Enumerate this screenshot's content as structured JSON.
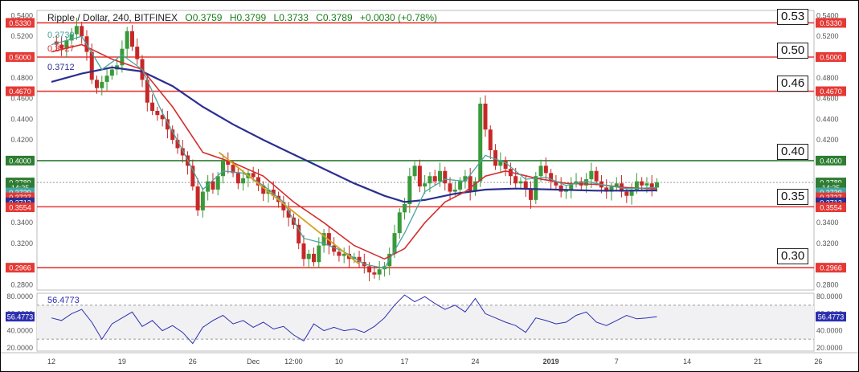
{
  "header": {
    "symbol": "Ripple / Dollar, 240, BITFINEX",
    "open": "O0.3759",
    "high": "H0.3799",
    "low": "L0.3733",
    "close": "C0.3789",
    "change": "+0.0030 (+0.78%)"
  },
  "level_boxes": [
    "0.53",
    "0.50",
    "0.46",
    "0.40",
    "0.35",
    "0.30"
  ],
  "ma_labels": {
    "ma1": "0.3739",
    "ma2": "0.3727",
    "ma3": "0.3712"
  },
  "rsi_label": "56.4773",
  "colors": {
    "up": "#3a9a3a",
    "down": "#c62828",
    "ma_fast": "#4aa3a0",
    "ma_mid": "#d32f2f",
    "ma_slow": "#2b2f8f",
    "trend": "#d4a020",
    "level_red": "#e53935",
    "level_green": "#2e7d32",
    "rsi": "#2b2fb0"
  },
  "chart_data": {
    "type": "candlestick",
    "ylim": [
      0.275,
      0.545
    ],
    "y_ticks": [
      "0.5400",
      "0.5200",
      "0.4800",
      "0.4600",
      "0.4400",
      "0.4200",
      "0.3800",
      "0.3600",
      "0.3400",
      "0.3200",
      "0.2800"
    ],
    "right_tags": [
      {
        "label": "0.5330",
        "value": 0.533,
        "color": "#e53935"
      },
      {
        "label": "0.5000",
        "value": 0.5,
        "color": "#e53935"
      },
      {
        "label": "0.4670",
        "value": 0.467,
        "color": "#e53935"
      },
      {
        "label": "0.4000",
        "value": 0.4,
        "color": "#2e7d32"
      },
      {
        "label": "0.3789",
        "value": 0.3789,
        "color": "#2e7d32"
      },
      {
        "label": "14:25",
        "value": 0.3741,
        "color": "#2e7d32"
      },
      {
        "label": "0.3739",
        "value": 0.3693,
        "color": "#4aa3a0"
      },
      {
        "label": "0.3727",
        "value": 0.3645,
        "color": "#e53935"
      },
      {
        "label": "0.3712",
        "value": 0.3597,
        "color": "#2b2f8f"
      },
      {
        "label": "0.3554",
        "value": 0.3549,
        "color": "#e53935"
      },
      {
        "label": "0.2966",
        "value": 0.2966,
        "color": "#e53935"
      }
    ],
    "left_tags": [
      {
        "label": "0.5330",
        "value": 0.533,
        "color": "#e53935"
      },
      {
        "label": "0.5000",
        "value": 0.5,
        "color": "#e53935"
      },
      {
        "label": "0.4670",
        "value": 0.467,
        "color": "#e53935"
      },
      {
        "label": "0.4000",
        "value": 0.4,
        "color": "#2e7d32"
      },
      {
        "label": "0.3789",
        "value": 0.3789,
        "color": "#2e7d32"
      },
      {
        "label": "14:25",
        "value": 0.3741,
        "color": "#2e7d32"
      },
      {
        "label": "0.3739",
        "value": 0.3693,
        "color": "#4aa3a0"
      },
      {
        "label": "0.3727",
        "value": 0.3645,
        "color": "#e53935"
      },
      {
        "label": "0.3712",
        "value": 0.3597,
        "color": "#2b2f8f"
      },
      {
        "label": "0.3554",
        "value": 0.3549,
        "color": "#e53935"
      },
      {
        "label": "0.2966",
        "value": 0.2966,
        "color": "#e53935"
      }
    ],
    "levels": [
      {
        "value": 0.533,
        "color": "#e53935"
      },
      {
        "value": 0.5,
        "color": "#e53935"
      },
      {
        "value": 0.467,
        "color": "#e53935"
      },
      {
        "value": 0.4,
        "color": "#2e7d32"
      },
      {
        "value": 0.3554,
        "color": "#e53935"
      },
      {
        "value": 0.2966,
        "color": "#e53935"
      }
    ],
    "x_labels": [
      "12",
      "19",
      "26",
      "Dec",
      "12:00",
      "10",
      "17",
      "24",
      "2019",
      "7",
      "14",
      "21",
      "26"
    ],
    "x_label_days": [
      0,
      7,
      14,
      20,
      24,
      28.5,
      35,
      42,
      49.5,
      56,
      63,
      70,
      76
    ],
    "n_days_visible": 77,
    "price_path": [
      [
        0,
        0.515
      ],
      [
        0.5,
        0.512
      ],
      [
        1,
        0.508
      ],
      [
        1.5,
        0.516
      ],
      [
        2,
        0.522
      ],
      [
        2.5,
        0.53
      ],
      [
        3,
        0.52
      ],
      [
        3.5,
        0.505
      ],
      [
        4,
        0.478
      ],
      [
        4.5,
        0.47
      ],
      [
        5,
        0.476
      ],
      [
        5.5,
        0.482
      ],
      [
        6,
        0.488
      ],
      [
        6.5,
        0.492
      ],
      [
        7,
        0.508
      ],
      [
        7.5,
        0.525
      ],
      [
        8,
        0.51
      ],
      [
        8.5,
        0.498
      ],
      [
        9,
        0.478
      ],
      [
        9.5,
        0.456
      ],
      [
        10,
        0.448
      ],
      [
        10.5,
        0.444
      ],
      [
        11,
        0.44
      ],
      [
        11.5,
        0.43
      ],
      [
        12,
        0.42
      ],
      [
        12.5,
        0.412
      ],
      [
        13,
        0.405
      ],
      [
        13.5,
        0.395
      ],
      [
        14,
        0.375
      ],
      [
        14.5,
        0.352
      ],
      [
        15,
        0.37
      ],
      [
        15.5,
        0.38
      ],
      [
        16,
        0.372
      ],
      [
        16.5,
        0.385
      ],
      [
        17,
        0.4
      ],
      [
        17.5,
        0.396
      ],
      [
        18,
        0.388
      ],
      [
        18.5,
        0.378
      ],
      [
        19,
        0.383
      ],
      [
        19.5,
        0.388
      ],
      [
        20,
        0.384
      ],
      [
        20.5,
        0.376
      ],
      [
        21,
        0.368
      ],
      [
        21.5,
        0.372
      ],
      [
        22,
        0.366
      ],
      [
        22.5,
        0.36
      ],
      [
        23,
        0.352
      ],
      [
        23.5,
        0.345
      ],
      [
        24,
        0.338
      ],
      [
        24.5,
        0.32
      ],
      [
        25,
        0.305
      ],
      [
        25.5,
        0.31
      ],
      [
        26,
        0.302
      ],
      [
        26.5,
        0.318
      ],
      [
        27,
        0.33
      ],
      [
        27.5,
        0.318
      ],
      [
        28,
        0.312
      ],
      [
        28.5,
        0.308
      ],
      [
        29,
        0.31
      ],
      [
        29.5,
        0.305
      ],
      [
        30,
        0.307
      ],
      [
        30.5,
        0.302
      ],
      [
        31,
        0.298
      ],
      [
        31.5,
        0.292
      ],
      [
        32,
        0.29
      ],
      [
        32.5,
        0.295
      ],
      [
        33,
        0.298
      ],
      [
        33.5,
        0.31
      ],
      [
        34,
        0.33
      ],
      [
        34.5,
        0.35
      ],
      [
        35,
        0.358
      ],
      [
        35.5,
        0.385
      ],
      [
        36,
        0.395
      ],
      [
        36.5,
        0.375
      ],
      [
        37,
        0.378
      ],
      [
        37.5,
        0.385
      ],
      [
        38,
        0.38
      ],
      [
        38.5,
        0.39
      ],
      [
        39,
        0.378
      ],
      [
        39.5,
        0.37
      ],
      [
        40,
        0.372
      ],
      [
        40.5,
        0.38
      ],
      [
        41,
        0.385
      ],
      [
        41.5,
        0.37
      ],
      [
        42,
        0.38
      ],
      [
        42.5,
        0.455
      ],
      [
        43,
        0.43
      ],
      [
        43.5,
        0.41
      ],
      [
        44,
        0.395
      ],
      [
        44.5,
        0.4
      ],
      [
        45,
        0.392
      ],
      [
        45.5,
        0.385
      ],
      [
        46,
        0.378
      ],
      [
        46.5,
        0.38
      ],
      [
        47,
        0.372
      ],
      [
        47.5,
        0.362
      ],
      [
        48,
        0.385
      ],
      [
        48.5,
        0.395
      ],
      [
        49,
        0.388
      ],
      [
        49.5,
        0.38
      ],
      [
        50,
        0.376
      ],
      [
        50.5,
        0.37
      ],
      [
        51,
        0.372
      ],
      [
        51.5,
        0.378
      ],
      [
        52,
        0.38
      ],
      [
        52.5,
        0.376
      ],
      [
        53,
        0.382
      ],
      [
        53.5,
        0.39
      ],
      [
        54,
        0.38
      ],
      [
        54.5,
        0.374
      ],
      [
        55,
        0.37
      ],
      [
        55.5,
        0.375
      ],
      [
        56,
        0.378
      ],
      [
        56.5,
        0.37
      ],
      [
        57,
        0.366
      ],
      [
        57.5,
        0.372
      ],
      [
        58,
        0.38
      ],
      [
        58.5,
        0.376
      ],
      [
        59,
        0.378
      ],
      [
        59.5,
        0.374
      ],
      [
        60,
        0.379
      ]
    ],
    "ma_fast": [
      [
        0,
        0.512
      ],
      [
        3,
        0.52
      ],
      [
        5,
        0.488
      ],
      [
        7,
        0.502
      ],
      [
        9,
        0.488
      ],
      [
        11,
        0.446
      ],
      [
        13,
        0.41
      ],
      [
        15,
        0.372
      ],
      [
        17,
        0.39
      ],
      [
        19,
        0.388
      ],
      [
        21,
        0.376
      ],
      [
        23,
        0.36
      ],
      [
        25,
        0.325
      ],
      [
        27,
        0.32
      ],
      [
        29,
        0.312
      ],
      [
        31,
        0.3
      ],
      [
        33,
        0.296
      ],
      [
        35,
        0.33
      ],
      [
        37,
        0.37
      ],
      [
        39,
        0.382
      ],
      [
        41,
        0.38
      ],
      [
        43,
        0.405
      ],
      [
        45,
        0.398
      ],
      [
        47,
        0.382
      ],
      [
        49,
        0.384
      ],
      [
        51,
        0.376
      ],
      [
        53,
        0.38
      ],
      [
        55,
        0.376
      ],
      [
        57,
        0.373
      ],
      [
        60,
        0.3739
      ]
    ],
    "ma_mid": [
      [
        0,
        0.505
      ],
      [
        3,
        0.512
      ],
      [
        6,
        0.498
      ],
      [
        9,
        0.488
      ],
      [
        12,
        0.452
      ],
      [
        15,
        0.408
      ],
      [
        18,
        0.398
      ],
      [
        21,
        0.385
      ],
      [
        24,
        0.36
      ],
      [
        27,
        0.34
      ],
      [
        30,
        0.318
      ],
      [
        33,
        0.305
      ],
      [
        35,
        0.315
      ],
      [
        37,
        0.34
      ],
      [
        39,
        0.36
      ],
      [
        41,
        0.37
      ],
      [
        43,
        0.385
      ],
      [
        45,
        0.39
      ],
      [
        48,
        0.383
      ],
      [
        51,
        0.378
      ],
      [
        54,
        0.377
      ],
      [
        57,
        0.374
      ],
      [
        60,
        0.3727
      ]
    ],
    "ma_slow": [
      [
        0,
        0.476
      ],
      [
        3,
        0.484
      ],
      [
        6,
        0.49
      ],
      [
        9,
        0.486
      ],
      [
        12,
        0.472
      ],
      [
        15,
        0.452
      ],
      [
        18,
        0.435
      ],
      [
        21,
        0.42
      ],
      [
        24,
        0.406
      ],
      [
        27,
        0.392
      ],
      [
        30,
        0.378
      ],
      [
        33,
        0.366
      ],
      [
        35,
        0.36
      ],
      [
        37,
        0.362
      ],
      [
        40,
        0.368
      ],
      [
        43,
        0.372
      ],
      [
        46,
        0.373
      ],
      [
        50,
        0.372
      ],
      [
        54,
        0.371
      ],
      [
        57,
        0.371
      ],
      [
        60,
        0.3712
      ]
    ],
    "trendline": [
      [
        16.6,
        0.408
      ],
      [
        30.5,
        0.3
      ]
    ],
    "rsi": {
      "ylim": [
        16,
        84
      ],
      "ticks": [
        "80.0000",
        "60.0000",
        "40.0000",
        "20.0000"
      ],
      "tick_values": [
        80,
        60,
        40,
        20
      ],
      "band": [
        70,
        30
      ],
      "values": [
        [
          0,
          55
        ],
        [
          1,
          52
        ],
        [
          2,
          60
        ],
        [
          3,
          65
        ],
        [
          4,
          50
        ],
        [
          5,
          30
        ],
        [
          6,
          48
        ],
        [
          7,
          55
        ],
        [
          8,
          62
        ],
        [
          9,
          45
        ],
        [
          10,
          52
        ],
        [
          11,
          40
        ],
        [
          12,
          46
        ],
        [
          13,
          38
        ],
        [
          14,
          25
        ],
        [
          15,
          44
        ],
        [
          16,
          52
        ],
        [
          17,
          58
        ],
        [
          18,
          48
        ],
        [
          19,
          52
        ],
        [
          20,
          44
        ],
        [
          21,
          50
        ],
        [
          22,
          42
        ],
        [
          23,
          45
        ],
        [
          24,
          35
        ],
        [
          25,
          28
        ],
        [
          26,
          48
        ],
        [
          27,
          40
        ],
        [
          28,
          44
        ],
        [
          29,
          40
        ],
        [
          30,
          42
        ],
        [
          31,
          38
        ],
        [
          32,
          45
        ],
        [
          33,
          55
        ],
        [
          34,
          70
        ],
        [
          35,
          82
        ],
        [
          36,
          74
        ],
        [
          37,
          80
        ],
        [
          38,
          72
        ],
        [
          39,
          65
        ],
        [
          40,
          70
        ],
        [
          41,
          62
        ],
        [
          42,
          78
        ],
        [
          43,
          60
        ],
        [
          44,
          55
        ],
        [
          45,
          50
        ],
        [
          46,
          46
        ],
        [
          47,
          38
        ],
        [
          48,
          55
        ],
        [
          49,
          52
        ],
        [
          50,
          48
        ],
        [
          51,
          50
        ],
        [
          52,
          58
        ],
        [
          53,
          62
        ],
        [
          54,
          50
        ],
        [
          55,
          46
        ],
        [
          56,
          52
        ],
        [
          57,
          58
        ],
        [
          58,
          54
        ],
        [
          59,
          55
        ],
        [
          60,
          56.5
        ]
      ]
    }
  }
}
